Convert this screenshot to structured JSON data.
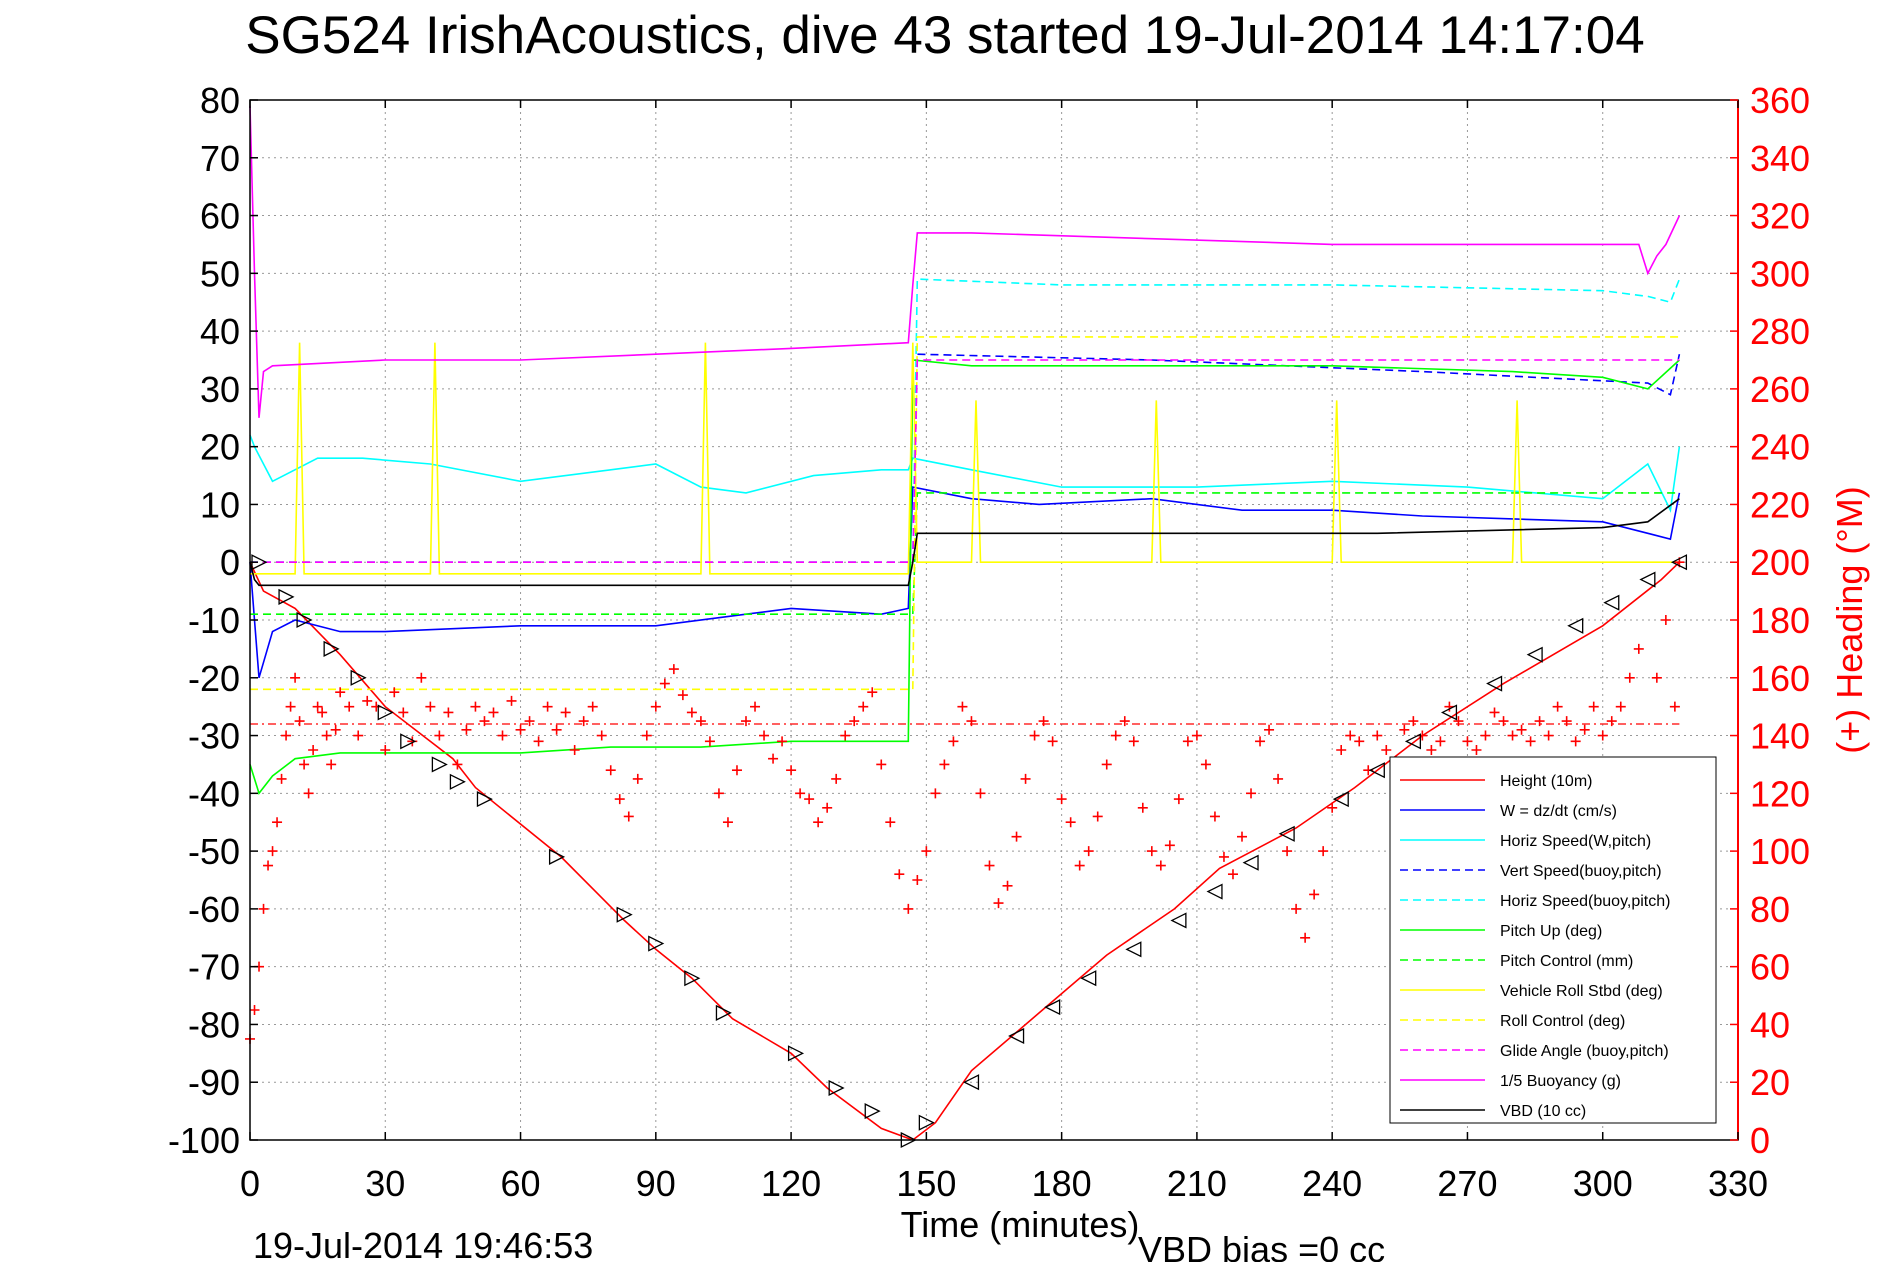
{
  "chart_data": {
    "type": "line",
    "title": "SG524 IrishAcoustics, dive 43 started 19-Jul-2014 14:17:04",
    "xlabel": "Time (minutes)",
    "y2label": "(+) Heading (°M)",
    "xlim": [
      0,
      330
    ],
    "ylim": [
      -100,
      80
    ],
    "y2lim": [
      0,
      360
    ],
    "x_ticks": [
      "0",
      "30",
      "60",
      "90",
      "120",
      "150",
      "180",
      "210",
      "240",
      "270",
      "300",
      "330"
    ],
    "y_ticks": [
      "80",
      "70",
      "60",
      "50",
      "40",
      "30",
      "20",
      "10",
      "0",
      "-10",
      "-20",
      "-30",
      "-40",
      "-50",
      "-60",
      "-70",
      "-80",
      "-90",
      "-100"
    ],
    "y2_ticks": [
      "360",
      "340",
      "320",
      "300",
      "280",
      "260",
      "240",
      "220",
      "200",
      "180",
      "160",
      "140",
      "120",
      "100",
      "80",
      "60",
      "40",
      "20",
      "0"
    ],
    "grid": true,
    "legend_position": "bottom-right",
    "footer_left": "19-Jul-2014 19:46:53",
    "footer_right": "VBD bias =0 cc",
    "series": [
      {
        "name": "Height (10m)",
        "color": "#ff0000",
        "style": "solid",
        "x": [
          0,
          3,
          10,
          20,
          30,
          45,
          50,
          69,
          83,
          90,
          98,
          107,
          120,
          128,
          140,
          147,
          152,
          160,
          175,
          190,
          205,
          215,
          232,
          245,
          260,
          278,
          300,
          313,
          317
        ],
        "y": [
          0,
          -5,
          -8,
          -16,
          -25,
          -34,
          -39,
          -51,
          -62,
          -67,
          -72,
          -79,
          -85,
          -91,
          -98,
          -100,
          -97,
          -88,
          -78,
          -68,
          -60,
          -53,
          -46,
          -39,
          -30,
          -21,
          -11,
          -3,
          0
        ]
      },
      {
        "name": "W = dz/dt (cm/s)",
        "color": "#0000ff",
        "style": "solid",
        "x": [
          0,
          2,
          5,
          10,
          20,
          30,
          60,
          90,
          110,
          120,
          140,
          146,
          147,
          160,
          175,
          200,
          220,
          240,
          260,
          300,
          310,
          315,
          317
        ],
        "y": [
          0,
          -20,
          -12,
          -10,
          -12,
          -12,
          -11,
          -11,
          -9,
          -8,
          -9,
          -8,
          13,
          11,
          10,
          11,
          9,
          9,
          8,
          7,
          5,
          4,
          12
        ]
      },
      {
        "name": "Horiz Speed(W,pitch)",
        "color": "#00ffff",
        "style": "solid",
        "x": [
          0,
          1,
          5,
          15,
          25,
          40,
          60,
          80,
          90,
          100,
          110,
          125,
          140,
          146,
          147,
          160,
          180,
          210,
          240,
          270,
          300,
          310,
          315,
          317
        ],
        "y": [
          22,
          20,
          14,
          18,
          18,
          17,
          14,
          16,
          17,
          13,
          12,
          15,
          16,
          16,
          18,
          16,
          13,
          13,
          14,
          13,
          11,
          17,
          9,
          20
        ]
      },
      {
        "name": "Vert Speed(buoy,pitch)",
        "color": "#0000ff",
        "style": "dashed",
        "x": [
          0,
          147,
          148,
          200,
          260,
          310,
          315,
          317
        ],
        "y": [
          0,
          0,
          36,
          35,
          33,
          31,
          29,
          36
        ]
      },
      {
        "name": "Horiz Speed(buoy,pitch)",
        "color": "#00ffff",
        "style": "dashed",
        "x": [
          0,
          147,
          148,
          180,
          240,
          300,
          310,
          315,
          317
        ],
        "y": [
          0,
          0,
          49,
          48,
          48,
          47,
          46,
          45,
          49
        ]
      },
      {
        "name": "Pitch Up (deg)",
        "color": "#00ff00",
        "style": "solid",
        "x": [
          0,
          2,
          5,
          10,
          20,
          40,
          60,
          80,
          100,
          120,
          140,
          146,
          147,
          160,
          200,
          240,
          280,
          300,
          310,
          317
        ],
        "y": [
          -35,
          -40,
          -37,
          -34,
          -33,
          -33,
          -33,
          -32,
          -32,
          -31,
          -31,
          -31,
          35,
          34,
          34,
          34,
          33,
          32,
          30,
          35
        ]
      },
      {
        "name": "Pitch Control (mm)",
        "color": "#00ff00",
        "style": "dashed",
        "x": [
          0,
          147,
          148,
          317
        ],
        "y": [
          -9,
          -9,
          12,
          12
        ]
      },
      {
        "name": "Vehicle Roll Stbd (deg)",
        "color": "#ffff00",
        "style": "solid",
        "x": [
          0,
          10,
          11,
          12,
          40,
          41,
          42,
          100,
          101,
          102,
          140,
          146,
          147,
          148,
          160,
          161,
          162,
          200,
          201,
          202,
          240,
          241,
          242,
          280,
          281,
          282,
          317
        ],
        "y": [
          -2,
          -2,
          38,
          -2,
          -2,
          38,
          -2,
          -2,
          38,
          -2,
          -2,
          -2,
          38,
          0,
          0,
          28,
          0,
          0,
          28,
          0,
          0,
          28,
          0,
          0,
          28,
          0,
          0
        ]
      },
      {
        "name": "Roll Control (deg)",
        "color": "#ffff00",
        "style": "dashed",
        "x": [
          0,
          147,
          148,
          317
        ],
        "y": [
          -22,
          -22,
          39,
          39
        ]
      },
      {
        "name": "Glide Angle (buoy,pitch)",
        "color": "#ff00ff",
        "style": "dashed",
        "x": [
          0,
          147,
          148,
          317
        ],
        "y": [
          0,
          0,
          35,
          35
        ]
      },
      {
        "name": "1/5 Buoyancy (g)",
        "color": "#ff00ff",
        "style": "solid",
        "x": [
          0,
          1,
          2,
          3,
          5,
          30,
          60,
          90,
          120,
          146,
          147,
          148,
          160,
          200,
          240,
          280,
          300,
          308,
          310,
          312,
          314,
          317
        ],
        "y": [
          79,
          50,
          25,
          33,
          34,
          35,
          35,
          36,
          37,
          38,
          48,
          57,
          57,
          56,
          55,
          55,
          55,
          55,
          50,
          53,
          55,
          60
        ]
      },
      {
        "name": "VBD (10 cc)",
        "color": "#000000",
        "style": "solid",
        "x": [
          0,
          1,
          2,
          3,
          146,
          147,
          148,
          150,
          200,
          250,
          300,
          310,
          317
        ],
        "y": [
          0,
          -3,
          -4,
          -4,
          -4,
          0,
          5,
          5,
          5,
          5,
          6,
          7,
          11
        ]
      }
    ],
    "heading_series": {
      "color": "#ff0000",
      "marker": "+",
      "axis": "right",
      "x": [
        0,
        1,
        2,
        3,
        4,
        5,
        6,
        7,
        8,
        9,
        10,
        11,
        12,
        13,
        14,
        15,
        16,
        17,
        18,
        19,
        20,
        22,
        24,
        26,
        28,
        30,
        32,
        34,
        36,
        38,
        40,
        42,
        44,
        46,
        48,
        50,
        52,
        54,
        56,
        58,
        60,
        62,
        64,
        66,
        68,
        70,
        72,
        74,
        76,
        78,
        80,
        82,
        84,
        86,
        88,
        90,
        92,
        94,
        96,
        98,
        100,
        102,
        104,
        106,
        108,
        110,
        112,
        114,
        116,
        118,
        120,
        122,
        124,
        126,
        128,
        130,
        132,
        134,
        136,
        138,
        140,
        142,
        144,
        146,
        148,
        150,
        152,
        154,
        156,
        158,
        160,
        162,
        164,
        166,
        168,
        170,
        172,
        174,
        176,
        178,
        180,
        182,
        184,
        186,
        188,
        190,
        192,
        194,
        196,
        198,
        200,
        202,
        204,
        206,
        208,
        210,
        212,
        214,
        216,
        218,
        220,
        222,
        224,
        226,
        228,
        230,
        232,
        234,
        236,
        238,
        240,
        242,
        244,
        246,
        248,
        250,
        252,
        254,
        256,
        258,
        260,
        262,
        264,
        266,
        268,
        270,
        272,
        274,
        276,
        278,
        280,
        282,
        284,
        286,
        288,
        290,
        292,
        294,
        296,
        298,
        300,
        302,
        304,
        306,
        308,
        310,
        312,
        314,
        316,
        317
      ],
      "y": [
        35,
        45,
        60,
        80,
        95,
        100,
        110,
        125,
        140,
        150,
        160,
        145,
        130,
        120,
        135,
        150,
        148,
        140,
        130,
        142,
        155,
        150,
        140,
        152,
        150,
        135,
        155,
        148,
        138,
        160,
        150,
        140,
        148,
        130,
        142,
        150,
        145,
        148,
        140,
        152,
        142,
        145,
        138,
        150,
        142,
        148,
        135,
        145,
        150,
        140,
        128,
        118,
        112,
        125,
        140,
        150,
        158,
        163,
        154,
        148,
        145,
        138,
        120,
        110,
        128,
        145,
        150,
        140,
        132,
        138,
        128,
        120,
        118,
        110,
        115,
        125,
        140,
        145,
        150,
        155,
        130,
        110,
        92,
        80,
        90,
        100,
        120,
        130,
        138,
        150,
        145,
        120,
        95,
        82,
        88,
        105,
        125,
        140,
        145,
        138,
        118,
        110,
        95,
        100,
        112,
        130,
        140,
        145,
        138,
        115,
        100,
        95,
        102,
        118,
        138,
        140,
        130,
        112,
        98,
        92,
        105,
        120,
        138,
        142,
        125,
        100,
        80,
        70,
        85,
        100,
        115,
        135,
        140,
        138,
        128,
        140,
        135,
        130,
        142,
        145,
        140,
        135,
        138,
        150,
        145,
        138,
        135,
        140,
        148,
        145,
        140,
        142,
        138,
        145,
        140,
        150,
        145,
        138,
        142,
        150,
        140,
        145,
        150,
        160,
        170,
        130,
        160,
        180,
        150,
        200
      ]
    },
    "heading_reference": {
      "color": "#ff0000",
      "style": "dash-dot",
      "y2": 144,
      "x": [
        0,
        317
      ]
    },
    "depth_markers": {
      "color": "#000000",
      "x": [
        2,
        8,
        12,
        18,
        24,
        30,
        35,
        42,
        46,
        52,
        68,
        83,
        90,
        98,
        105,
        121,
        130,
        138,
        146,
        150,
        160,
        170,
        178,
        186,
        196,
        206,
        214,
        222,
        230,
        242,
        250,
        258,
        266,
        276,
        285,
        294,
        302,
        310,
        317
      ],
      "y": [
        0,
        -6,
        -10,
        -15,
        -20,
        -26,
        -31,
        -35,
        -38,
        -41,
        -51,
        -61,
        -66,
        -72,
        -78,
        -85,
        -91,
        -95,
        -100,
        -97,
        -90,
        -82,
        -77,
        -72,
        -67,
        -62,
        -57,
        -52,
        -47,
        -41,
        -36,
        -31,
        -26,
        -21,
        -16,
        -11,
        -7,
        -3,
        0
      ]
    }
  }
}
